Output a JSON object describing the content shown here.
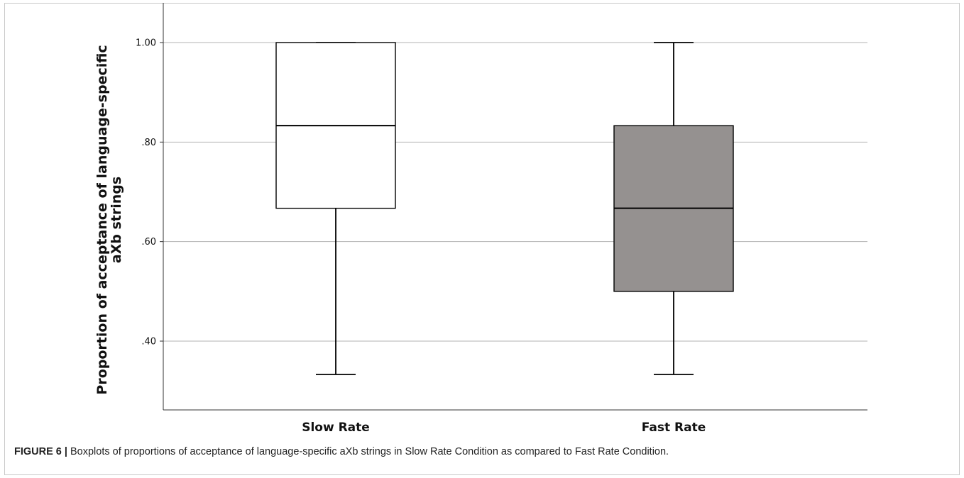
{
  "chart_data": {
    "type": "boxplot",
    "ylabel_lines": [
      "Proportion of acceptance of language-specific",
      "aXb strings"
    ],
    "ylim": [
      0.26,
      1.04
    ],
    "yticks": [
      0.4,
      0.6,
      0.8,
      1.0
    ],
    "ytick_labels": [
      ".40",
      ".60",
      ".80",
      "1.00"
    ],
    "grid": true,
    "categories": [
      "Slow Rate",
      "Fast Rate"
    ],
    "boxes": [
      {
        "category": "Slow Rate",
        "min": 0.333,
        "q1": 0.667,
        "median": 0.833,
        "q3": 1.0,
        "max": 1.0,
        "fill": "#ffffff"
      },
      {
        "category": "Fast Rate",
        "min": 0.333,
        "q1": 0.5,
        "median": 0.667,
        "q3": 0.833,
        "max": 1.0,
        "fill": "#959190"
      }
    ]
  },
  "caption": {
    "figure_label": "FIGURE 6 |",
    "text": " Boxplots of proportions of acceptance of language-specific aXb strings in Slow Rate Condition as compared to Fast Rate Condition."
  }
}
